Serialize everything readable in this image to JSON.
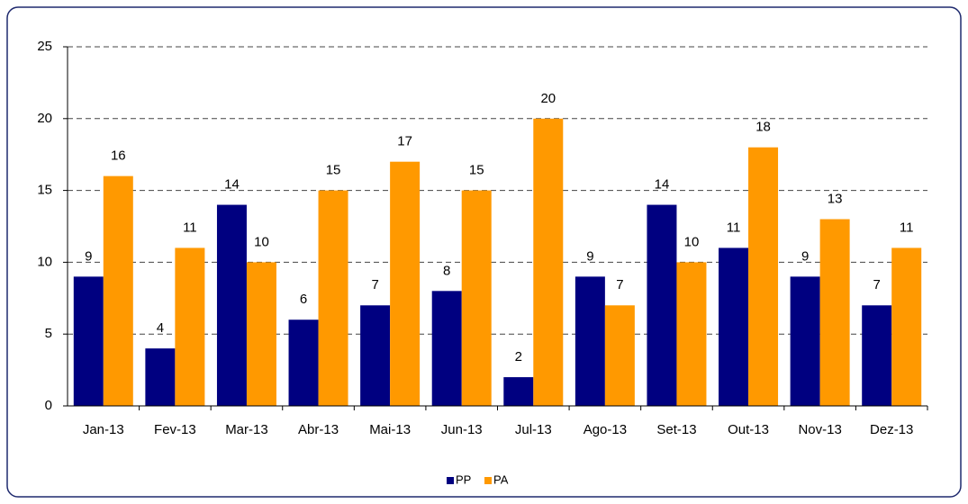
{
  "chart_data": {
    "type": "bar",
    "categories": [
      "Jan-13",
      "Fev-13",
      "Mar-13",
      "Abr-13",
      "Mai-13",
      "Jun-13",
      "Jul-13",
      "Ago-13",
      "Set-13",
      "Out-13",
      "Nov-13",
      "Dez-13"
    ],
    "series": [
      {
        "name": "PP",
        "color": "#000080",
        "values": [
          9,
          4,
          14,
          6,
          7,
          8,
          2,
          9,
          14,
          11,
          9,
          7
        ]
      },
      {
        "name": "PA",
        "color": "#ff9900",
        "values": [
          16,
          11,
          10,
          15,
          17,
          15,
          20,
          7,
          10,
          18,
          13,
          11
        ]
      }
    ],
    "ylim": [
      0,
      25
    ],
    "yticks": [
      0,
      5,
      10,
      15,
      20,
      25
    ],
    "grid": true,
    "legend": "bottom"
  }
}
